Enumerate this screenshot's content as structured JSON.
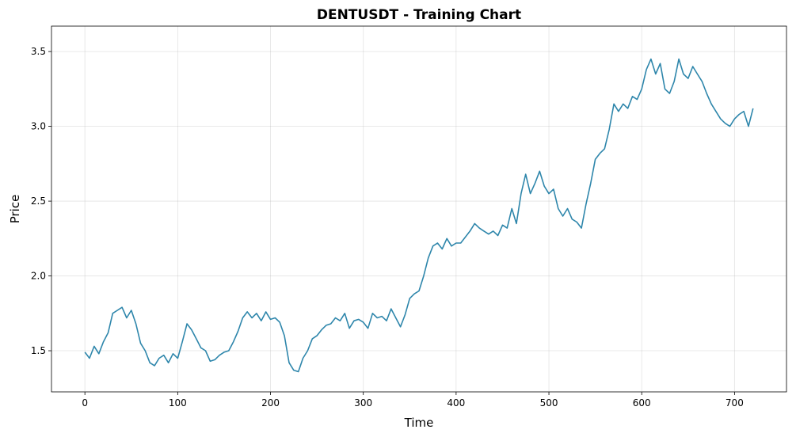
{
  "chart_data": {
    "type": "line",
    "title": "DENTUSDT - Training Chart",
    "xlabel": "Time",
    "ylabel": "Price",
    "xlim": [
      -36,
      756
    ],
    "ylim": [
      1.225,
      3.67
    ],
    "xticks": [
      0,
      100,
      200,
      300,
      400,
      500,
      600,
      700
    ],
    "yticks": [
      1.5,
      2.0,
      2.5,
      3.0,
      3.5
    ],
    "ytick_labels": [
      "1.5",
      "2.0",
      "2.5",
      "3.0",
      "3.5"
    ],
    "grid": true,
    "line_color": "#2e86ab",
    "series": [
      {
        "name": "",
        "x": [
          0,
          5,
          10,
          15,
          20,
          25,
          30,
          35,
          40,
          45,
          50,
          55,
          60,
          65,
          70,
          75,
          80,
          85,
          90,
          95,
          100,
          105,
          110,
          115,
          120,
          125,
          130,
          135,
          140,
          145,
          150,
          155,
          160,
          165,
          170,
          175,
          180,
          185,
          190,
          195,
          200,
          205,
          210,
          215,
          220,
          225,
          230,
          235,
          240,
          245,
          250,
          255,
          260,
          265,
          270,
          275,
          280,
          285,
          290,
          295,
          300,
          305,
          310,
          315,
          320,
          325,
          330,
          335,
          340,
          345,
          350,
          355,
          360,
          365,
          370,
          375,
          380,
          385,
          390,
          395,
          400,
          405,
          410,
          415,
          420,
          425,
          430,
          435,
          440,
          445,
          450,
          455,
          460,
          465,
          470,
          475,
          480,
          485,
          490,
          495,
          500,
          505,
          510,
          515,
          520,
          525,
          530,
          535,
          540,
          545,
          550,
          555,
          560,
          565,
          570,
          575,
          580,
          585,
          590,
          595,
          600,
          605,
          610,
          615,
          620,
          625,
          630,
          635,
          640,
          645,
          650,
          655,
          660,
          665,
          670,
          675,
          680,
          685,
          690,
          695,
          700,
          705,
          710,
          715,
          720
        ],
        "y": [
          1.49,
          1.45,
          1.53,
          1.48,
          1.56,
          1.62,
          1.75,
          1.77,
          1.79,
          1.72,
          1.77,
          1.68,
          1.55,
          1.5,
          1.42,
          1.4,
          1.45,
          1.47,
          1.42,
          1.48,
          1.45,
          1.56,
          1.68,
          1.64,
          1.58,
          1.52,
          1.5,
          1.43,
          1.44,
          1.47,
          1.49,
          1.5,
          1.56,
          1.63,
          1.72,
          1.76,
          1.72,
          1.75,
          1.7,
          1.76,
          1.71,
          1.72,
          1.69,
          1.6,
          1.42,
          1.37,
          1.36,
          1.45,
          1.5,
          1.58,
          1.6,
          1.64,
          1.67,
          1.68,
          1.72,
          1.7,
          1.75,
          1.65,
          1.7,
          1.71,
          1.69,
          1.65,
          1.75,
          1.72,
          1.73,
          1.7,
          1.78,
          1.72,
          1.66,
          1.74,
          1.85,
          1.88,
          1.9,
          2.0,
          2.12,
          2.2,
          2.22,
          2.18,
          2.25,
          2.2,
          2.22,
          2.22,
          2.26,
          2.3,
          2.35,
          2.32,
          2.3,
          2.28,
          2.3,
          2.27,
          2.34,
          2.32,
          2.45,
          2.35,
          2.55,
          2.68,
          2.55,
          2.62,
          2.7,
          2.6,
          2.55,
          2.58,
          2.45,
          2.4,
          2.45,
          2.38,
          2.36,
          2.32,
          2.48,
          2.62,
          2.78,
          2.82,
          2.85,
          2.98,
          3.15,
          3.1,
          3.15,
          3.12,
          3.2,
          3.18,
          3.25,
          3.38,
          3.45,
          3.35,
          3.42,
          3.25,
          3.22,
          3.3,
          3.45,
          3.35,
          3.32,
          3.4,
          3.35,
          3.3,
          3.22,
          3.15,
          3.1,
          3.05,
          3.02,
          3.0,
          3.05,
          3.08,
          3.1,
          3.0,
          3.12
        ]
      }
    ]
  }
}
